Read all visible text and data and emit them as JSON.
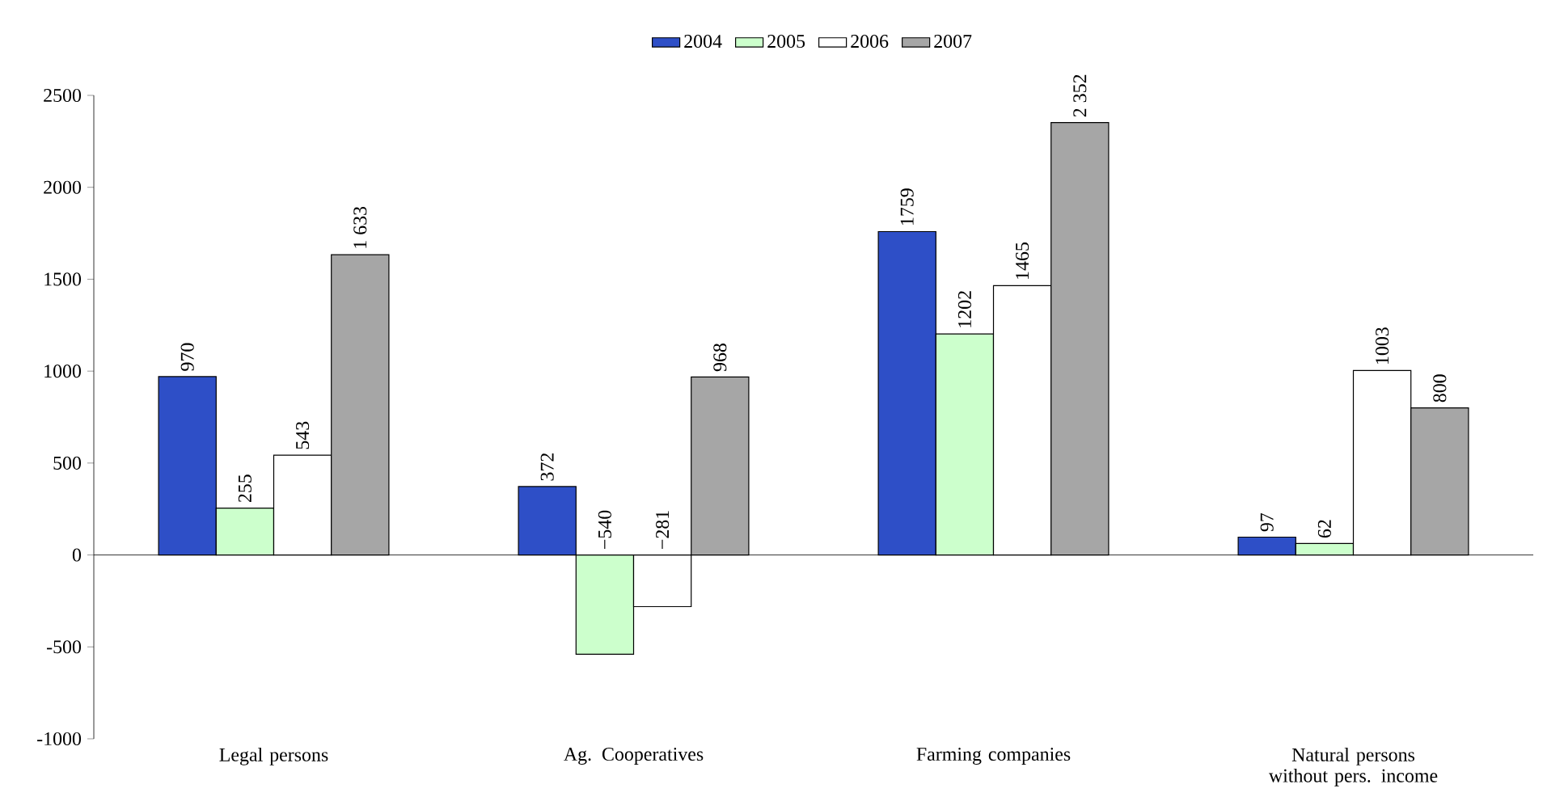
{
  "chart_data": {
    "type": "bar",
    "categories": [
      "Legal persons",
      "Ag. Cooperatives",
      "Farming companies",
      "Natural persons without pers. income"
    ],
    "series": [
      {
        "name": "2004",
        "color": "#2e4fc7",
        "values": [
          970,
          372,
          1759,
          97
        ],
        "value_labels": [
          "970",
          "372",
          "1759",
          "97"
        ]
      },
      {
        "name": "2005",
        "color": "#ccffcc",
        "values": [
          255,
          -540,
          1202,
          62
        ],
        "value_labels": [
          "255",
          "−540",
          "1202",
          "62"
        ]
      },
      {
        "name": "2006",
        "color": "#ffffff",
        "values": [
          543,
          -281,
          1465,
          1003
        ],
        "value_labels": [
          "543",
          "−281",
          "1465",
          "1003"
        ]
      },
      {
        "name": "2007",
        "color": "#a6a6a6",
        "values": [
          1633,
          968,
          2352,
          800
        ],
        "value_labels": [
          "1 633",
          "968",
          "2 352",
          "800"
        ]
      }
    ],
    "ylim": [
      -1000,
      2500
    ],
    "yticks": [
      -1000,
      -500,
      0,
      500,
      1000,
      1500,
      2000,
      2500
    ],
    "legend": "top"
  }
}
